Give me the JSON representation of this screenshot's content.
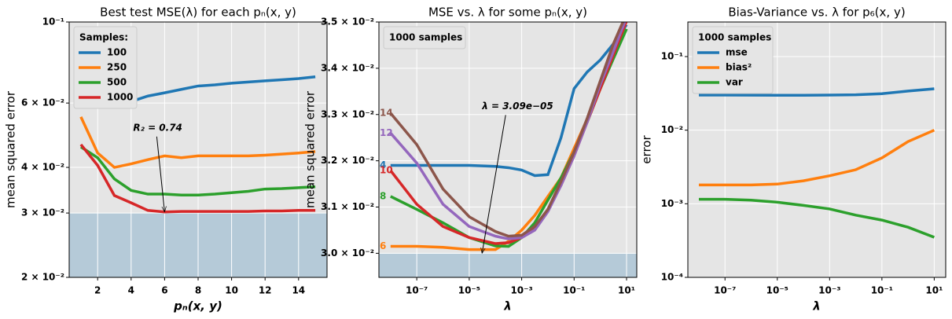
{
  "chart_data": [
    {
      "type": "line",
      "title": "Best test MSE(λ) for each pₙ(x, y)",
      "xlabel": "pₙ(x, y)",
      "ylabel": "mean squared error",
      "x": [
        1,
        2,
        3,
        4,
        5,
        6,
        7,
        8,
        9,
        10,
        11,
        12,
        13,
        14,
        15
      ],
      "series": [
        {
          "name": "100",
          "color": "#1f77b4",
          "values": [
            0.0615,
            0.0586,
            0.0588,
            0.0606,
            0.0627,
            0.064,
            0.0654,
            0.0668,
            0.0673,
            0.068,
            0.0685,
            0.069,
            0.0695,
            0.07,
            0.0708
          ]
        },
        {
          "name": "250",
          "color": "#ff7f0e",
          "values": [
            0.055,
            0.0438,
            0.04,
            0.0409,
            0.042,
            0.043,
            0.0425,
            0.043,
            0.043,
            0.043,
            0.043,
            0.0432,
            0.0435,
            0.0438,
            0.0442
          ]
        },
        {
          "name": "500",
          "color": "#2ca02c",
          "values": [
            0.0455,
            0.0425,
            0.0372,
            0.0346,
            0.0338,
            0.0338,
            0.0336,
            0.0336,
            0.0338,
            0.0341,
            0.0344,
            0.0349,
            0.035,
            0.0352,
            0.0354
          ]
        },
        {
          "name": "1000",
          "color": "#d62728",
          "values": [
            0.0462,
            0.0405,
            0.0335,
            0.032,
            0.0305,
            0.0302,
            0.0303,
            0.0303,
            0.0303,
            0.0303,
            0.0303,
            0.0304,
            0.0304,
            0.0305,
            0.0305
          ]
        }
      ],
      "xlim": [
        0.3,
        15.7
      ],
      "ylim": [
        0.02,
        0.1
      ],
      "ylog": true,
      "grid": true,
      "xticks": [
        2,
        4,
        6,
        8,
        10,
        12,
        14
      ],
      "yticks": [
        {
          "value": 0.02,
          "label": "2 × 10⁻²"
        },
        {
          "value": 0.03,
          "label": "3 × 10⁻²"
        },
        {
          "value": 0.04,
          "label": "4 × 10⁻²"
        },
        {
          "value": 0.06,
          "label": "6 × 10⁻²"
        },
        {
          "value": 0.1,
          "label": "10⁻¹"
        }
      ],
      "shade": {
        "ymin": 0.02,
        "ymax": 0.03,
        "color": "#b5cad8"
      },
      "annotation": {
        "text": "R₂ = 0.74",
        "xy": [
          6,
          0.0302
        ]
      },
      "legend": {
        "title": "Samples:",
        "loc": "upper left",
        "show_entries": true
      }
    },
    {
      "type": "line",
      "title": "MSE vs. λ for some pₙ(x, y)",
      "xlabel": "λ",
      "ylabel": "mean squared error",
      "x": [
        1e-08,
        1e-07,
        1e-06,
        1e-05,
        0.0001,
        0.000316,
        0.001,
        0.00316,
        0.01,
        0.0316,
        0.1,
        0.316,
        1,
        3.16,
        10
      ],
      "series": [
        {
          "name": "4",
          "color": "#1f77b4",
          "values": [
            0.0319,
            0.0319,
            0.0319,
            0.0319,
            0.03188,
            0.03185,
            0.0318,
            0.03168,
            0.0317,
            0.0325,
            0.03356,
            0.03392,
            0.03418,
            0.03453,
            0.03494
          ]
        },
        {
          "name": "6",
          "color": "#ff7f0e",
          "values": [
            0.03015,
            0.03015,
            0.03013,
            0.03008,
            0.03008,
            0.03026,
            0.0305,
            0.03082,
            0.03123,
            0.03163,
            0.03227,
            0.0329,
            0.03356,
            0.03428,
            0.0351
          ]
        },
        {
          "name": "8",
          "color": "#2ca02c",
          "values": [
            0.03123,
            0.03095,
            0.03066,
            0.03034,
            0.03016,
            0.03015,
            0.03034,
            0.03066,
            0.03115,
            0.03163,
            0.03219,
            0.03284,
            0.03356,
            0.03421,
            0.03485
          ]
        },
        {
          "name": "10",
          "color": "#d62728",
          "values": [
            0.03179,
            0.03106,
            0.03058,
            0.03034,
            0.03021,
            0.03023,
            0.03034,
            0.03053,
            0.03095,
            0.03147,
            0.03211,
            0.03284,
            0.03356,
            0.03429,
            0.03502
          ]
        },
        {
          "name": "12",
          "color": "#9467bd",
          "values": [
            0.0326,
            0.03195,
            0.03106,
            0.03058,
            0.03037,
            0.03031,
            0.03034,
            0.0305,
            0.0309,
            0.03147,
            0.03211,
            0.03284,
            0.03365,
            0.03437,
            0.0351
          ]
        },
        {
          "name": "14",
          "color": "#8c564b",
          "values": [
            0.03303,
            0.03235,
            0.03139,
            0.03079,
            0.03047,
            0.03037,
            0.03039,
            0.03058,
            0.03095,
            0.03155,
            0.03219,
            0.03292,
            0.03373,
            0.03453,
            0.03518
          ]
        }
      ],
      "xlim": [
        3.6e-09,
        24.5
      ],
      "xlog": true,
      "ylim": [
        0.02948,
        0.035
      ],
      "grid": true,
      "xticks": [
        {
          "value": 1e-07,
          "label": "10⁻⁷"
        },
        {
          "value": 1e-05,
          "label": "10⁻⁵"
        },
        {
          "value": 0.001,
          "label": "10⁻³"
        },
        {
          "value": 0.1,
          "label": "10⁻¹"
        },
        {
          "value": 10,
          "label": "10¹"
        }
      ],
      "yticks": [
        {
          "value": 0.03,
          "label": "3.0 × 10⁻²"
        },
        {
          "value": 0.031,
          "label": "3.1 × 10⁻²"
        },
        {
          "value": 0.032,
          "label": "3.2 × 10⁻²"
        },
        {
          "value": 0.033,
          "label": "3.3 × 10⁻²"
        },
        {
          "value": 0.034,
          "label": "3.4 × 10⁻²"
        },
        {
          "value": 0.035,
          "label": "3.5 × 10⁻²"
        }
      ],
      "shade": {
        "ymin": 0.029,
        "ymax": 0.03,
        "color": "#b5cad8"
      },
      "series_labels_at_start": true,
      "annotation": {
        "text": "λ = 3.09e−05",
        "xy": [
          3.09e-05,
          0.03
        ]
      },
      "legend": {
        "title": "1000 samples",
        "loc": "upper left",
        "show_entries": false
      }
    },
    {
      "type": "line",
      "title": "Bias-Variance vs. λ for p₆(x, y)",
      "xlabel": "λ",
      "ylabel": "error",
      "x": [
        1e-08,
        1e-07,
        1e-06,
        1e-05,
        0.0001,
        0.001,
        0.01,
        0.1,
        1,
        10
      ],
      "series": [
        {
          "name": "mse",
          "color": "#1f77b4",
          "values": [
            0.03,
            0.03,
            0.0299,
            0.0298,
            0.0298,
            0.03,
            0.0303,
            0.0313,
            0.034,
            0.0365
          ]
        },
        {
          "name": "bias²",
          "color": "#ff7f0e",
          "values": [
            0.0018,
            0.0018,
            0.0018,
            0.00185,
            0.00205,
            0.0024,
            0.0029,
            0.0042,
            0.007,
            0.01
          ]
        },
        {
          "name": "var",
          "color": "#2ca02c",
          "values": [
            0.00115,
            0.00115,
            0.00112,
            0.00105,
            0.00095,
            0.00085,
            0.0007,
            0.0006,
            0.00048,
            0.00035
          ]
        }
      ],
      "xlim": [
        3.8e-09,
        27.5
      ],
      "xlog": true,
      "ylim": [
        0.0001,
        0.295
      ],
      "ylog": true,
      "grid": true,
      "xticks": [
        {
          "value": 1e-07,
          "label": "10⁻⁷"
        },
        {
          "value": 1e-05,
          "label": "10⁻⁵"
        },
        {
          "value": 0.001,
          "label": "10⁻³"
        },
        {
          "value": 0.1,
          "label": "10⁻¹"
        },
        {
          "value": 10,
          "label": "10¹"
        }
      ],
      "yticks": [
        {
          "value": 0.0001,
          "label": "10⁻⁴"
        },
        {
          "value": 0.001,
          "label": "10⁻³"
        },
        {
          "value": 0.01,
          "label": "10⁻²"
        },
        {
          "value": 0.1,
          "label": "10⁻¹"
        }
      ],
      "legend": {
        "title": "1000 samples",
        "loc": "upper left",
        "show_entries": true
      }
    }
  ]
}
